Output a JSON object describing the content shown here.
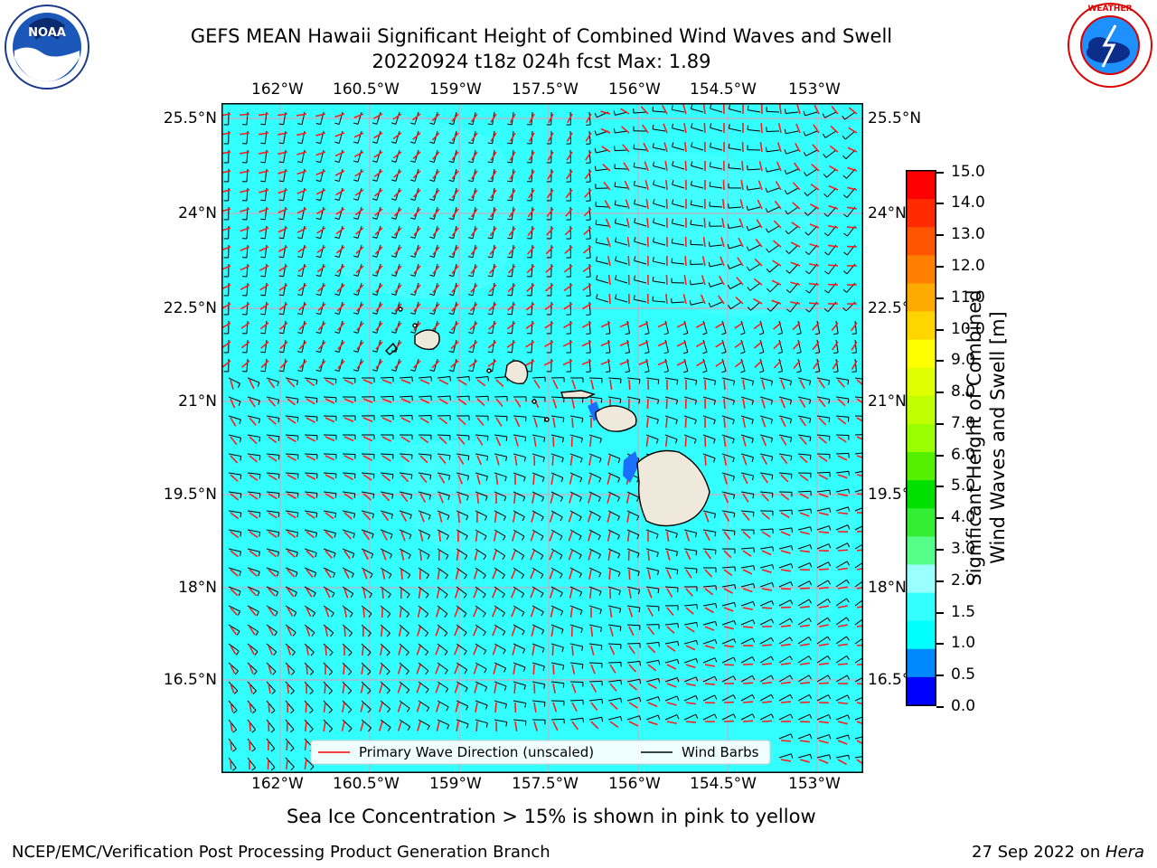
{
  "header": {
    "title_line1": "GEFS MEAN Hawaii Significant Height of Combined Wind Waves and Swell",
    "title_line2": "20220924 t18z 024h fcst   Max: 1.89"
  },
  "logos": {
    "left": {
      "name": "noaa-logo",
      "text": "NOAA",
      "ring_text": "NATIONAL OCEANIC AND ATMOSPHERIC ADMINISTRATION · U.S. DEPARTMENT OF COMMERCE"
    },
    "right": {
      "name": "nws-logo",
      "ring_text": "NATIONAL WEATHER SERVICE"
    }
  },
  "map": {
    "lon_ticks": [
      "162°W",
      "160.5°W",
      "159°W",
      "157.5°W",
      "156°W",
      "154.5°W",
      "153°W"
    ],
    "lat_ticks": [
      "25.5°N",
      "24°N",
      "22.5°N",
      "21°N",
      "19.5°N",
      "18°N",
      "16.5°N"
    ],
    "ocean_color": "#33ffff",
    "land_color": "#efe9dc",
    "barb_color": "#000000",
    "arrow_color": "#ff0000",
    "legend": {
      "wave_label": "Primary Wave Direction (unscaled)",
      "barb_label": "Wind Barbs"
    }
  },
  "colorbar": {
    "label_line1": "Significant Height of Combined",
    "label_line2": "Wind Waves and Swell [m]",
    "ticks": [
      "15.0",
      "14.0",
      "13.0",
      "12.0",
      "11.0",
      "10.0",
      "9.0",
      "8.0",
      "7.0",
      "6.0",
      "5.0",
      "4.0",
      "3.0",
      "2.0",
      "1.5",
      "1.0",
      "0.5",
      "0.0"
    ],
    "colors": [
      "#ff0000",
      "#ff2a00",
      "#ff5500",
      "#ff8000",
      "#ffaa00",
      "#ffd500",
      "#ffff00",
      "#e0ff00",
      "#c0ff00",
      "#9aff00",
      "#55f000",
      "#00e000",
      "#33ee33",
      "#55ff88",
      "#99ffff",
      "#33ffff",
      "#00ffff",
      "#0088ff",
      "#0000ff"
    ]
  },
  "caption": "Sea Ice Concentration > 15% is shown in pink to yellow",
  "footer": {
    "left": "NCEP/EMC/Verification Post Processing Product Generation Branch",
    "right_date": "27 Sep 2022 on ",
    "right_host": "Hera"
  }
}
